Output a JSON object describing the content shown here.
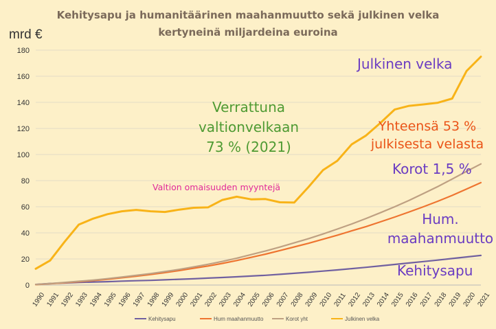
{
  "chart_data": {
    "type": "line",
    "title_line1": "Kehitysapu ja humanitäärinen maahanmuutto sekä julkinen velka",
    "title_line2": "kertyneinä miljardeina euroina",
    "ylabel": "mrd €",
    "ylim": [
      0,
      180
    ],
    "yticks": [
      0,
      20,
      40,
      60,
      80,
      100,
      120,
      140,
      160,
      180
    ],
    "grid": true,
    "x": [
      "1990",
      "1991",
      "1992",
      "1993",
      "1994",
      "1995",
      "1996",
      "1997",
      "1998",
      "1999",
      "2000",
      "2001",
      "2002",
      "2003",
      "2004",
      "2005",
      "2006",
      "2007",
      "2008",
      "2009",
      "2010",
      "2011",
      "2012",
      "2013",
      "2014",
      "2015",
      "2016",
      "2017",
      "2018",
      "2019",
      "2020",
      "2021"
    ],
    "series": [
      {
        "name": "Kehitysapu",
        "color": "#7060a0",
        "values": [
          0.5,
          1.2,
          1.6,
          2.0,
          2.3,
          2.6,
          3.0,
          3.3,
          3.6,
          4.0,
          4.4,
          4.8,
          5.3,
          5.8,
          6.3,
          6.9,
          7.5,
          8.2,
          9.0,
          9.8,
          10.7,
          11.6,
          12.6,
          13.6,
          14.7,
          15.8,
          16.9,
          18.0,
          19.1,
          20.3,
          21.5,
          22.7
        ]
      },
      {
        "name": "Hum maahanmuutto",
        "color": "#ee7430",
        "values": [
          0.3,
          1.0,
          1.8,
          2.6,
          3.4,
          4.4,
          5.6,
          6.8,
          8.1,
          9.5,
          11.1,
          12.9,
          14.6,
          16.6,
          18.8,
          21.2,
          23.7,
          26.4,
          29.2,
          32.0,
          35.1,
          38.2,
          41.5,
          44.8,
          48.4,
          52.1,
          56.0,
          60.0,
          64.2,
          68.7,
          73.6,
          78.5
        ]
      },
      {
        "name": "Korot yht",
        "color": "#bea082",
        "values": [
          0.4,
          1.1,
          2.0,
          2.9,
          3.8,
          4.9,
          6.1,
          7.4,
          8.8,
          10.3,
          12.0,
          13.9,
          15.9,
          18.1,
          20.6,
          23.3,
          26.1,
          29.1,
          32.3,
          35.6,
          39.1,
          42.9,
          46.8,
          51.0,
          55.4,
          60.0,
          64.9,
          70.1,
          75.5,
          81.2,
          87.1,
          92.8
        ]
      },
      {
        "name": "Julkinen velka",
        "color": "#f8b318",
        "values": [
          12.5,
          18.8,
          33.0,
          46.3,
          50.9,
          54.3,
          56.5,
          57.6,
          56.5,
          56.0,
          57.8,
          59.2,
          59.5,
          65.2,
          67.7,
          65.7,
          65.9,
          63.4,
          63.2,
          75.2,
          88.0,
          95.2,
          107.8,
          114.6,
          124.2,
          134.5,
          137.3,
          138.4,
          139.7,
          142.9,
          164.0,
          175.0
        ]
      }
    ],
    "annotations": {
      "julkinen_velka": {
        "text": "Julkinen velka",
        "color": "#6a3cc2"
      },
      "verrattuna": {
        "lines": [
          "Verrattuna",
          "valtionvelkaan",
          "73 % (2021)"
        ],
        "color": "#4e9a32"
      },
      "yhteensa": {
        "lines": [
          "Yhteensä 53 %",
          "julkisesta velasta"
        ],
        "color": "#ea5418"
      },
      "korot": {
        "text": "Korot 1,5 %",
        "color": "#6a3cc2"
      },
      "hum": {
        "lines": [
          "Hum.",
          "maahanmuutto"
        ],
        "color": "#6a3cc2"
      },
      "kehitysapu": {
        "text": "Kehitysapu",
        "color": "#6a3cc2"
      },
      "valtion": {
        "text": "Valtion omaisuuden myyntejä",
        "color": "#e02a9a"
      }
    }
  }
}
